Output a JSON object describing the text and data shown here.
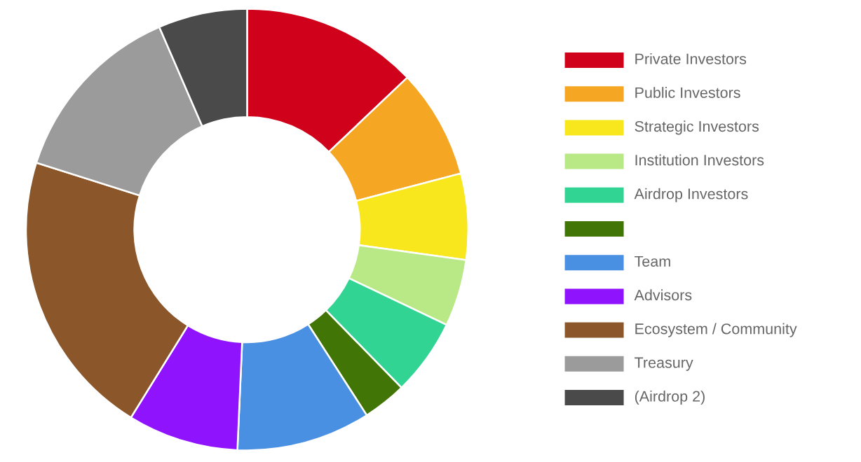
{
  "chart_data": {
    "type": "donut",
    "categories": [
      "Private Investors",
      "Public Investors",
      "Strategic Investors",
      "Institution Investors",
      "Airdrop Investors",
      null,
      "Team",
      "Advisors",
      "Ecosystem / Community",
      "Treasury",
      "(Airdrop 2)"
    ],
    "values": [
      12.9,
      8.0,
      6.3,
      4.9,
      5.6,
      3.2,
      9.8,
      8.1,
      21.1,
      13.6,
      6.5
    ],
    "colors": [
      "#d0021b",
      "#f5a623",
      "#f8e71c",
      "#b8e986",
      "#31d492",
      "#417505",
      "#4a90e2",
      "#9013fe",
      "#8b572a",
      "#9b9b9b",
      "#4a4a4a"
    ],
    "legend": "right"
  }
}
